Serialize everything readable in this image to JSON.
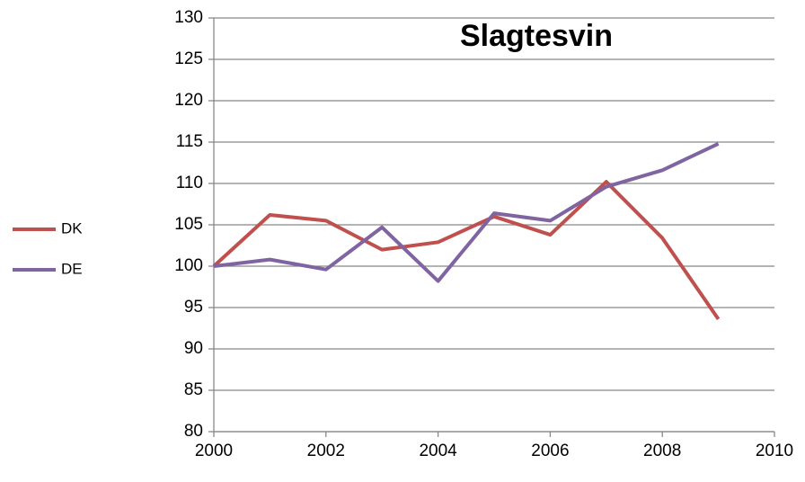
{
  "chart_data": {
    "type": "line",
    "title": "Slagtesvin",
    "x": [
      2000,
      2001,
      2002,
      2003,
      2004,
      2005,
      2006,
      2007,
      2008,
      2009
    ],
    "series": [
      {
        "name": "DK",
        "color": "#c0504d",
        "values": [
          100,
          106.2,
          105.5,
          102.0,
          102.9,
          106.0,
          103.8,
          110.2,
          103.4,
          93.6
        ]
      },
      {
        "name": "DE",
        "color": "#8064a2",
        "values": [
          100,
          100.8,
          99.6,
          104.7,
          98.2,
          106.4,
          105.5,
          109.6,
          111.6,
          114.8
        ]
      }
    ],
    "xlim": [
      2000,
      2010
    ],
    "xticks": [
      2000,
      2002,
      2004,
      2006,
      2008,
      2010
    ],
    "ylim": [
      80,
      130
    ],
    "yticks": [
      80,
      85,
      90,
      95,
      100,
      105,
      110,
      115,
      120,
      125,
      130
    ],
    "grid": true,
    "legend": "left"
  }
}
